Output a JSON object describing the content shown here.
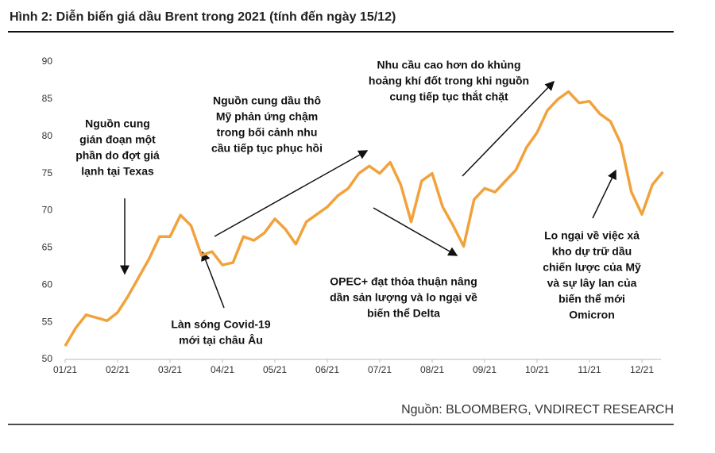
{
  "chart_data": {
    "type": "line",
    "title": "Hình 2: Diễn biến giá dầu Brent trong 2021 (tính đến ngày 15/12)",
    "source": "Nguồn: BLOOMBERG, VNDIRECT RESEARCH",
    "categories": [
      "01/21",
      null,
      null,
      null,
      null,
      "02/21",
      null,
      null,
      null,
      null,
      "03/21",
      null,
      null,
      null,
      null,
      "04/21",
      null,
      null,
      null,
      null,
      "05/21",
      null,
      null,
      null,
      null,
      "06/21",
      null,
      null,
      null,
      null,
      "07/21",
      null,
      null,
      null,
      null,
      "08/21",
      null,
      null,
      null,
      null,
      "09/21",
      null,
      null,
      null,
      null,
      "10/21",
      null,
      null,
      null,
      null,
      "11/21",
      null,
      null,
      null,
      null,
      "12/21",
      null,
      null
    ],
    "series": [
      {
        "color": "#f2a23c",
        "values": [
          51.8,
          54.2,
          56.0,
          55.6,
          55.2,
          56.3,
          58.5,
          61.0,
          63.5,
          66.5,
          66.5,
          69.4,
          68.0,
          64.0,
          64.5,
          62.7,
          63.0,
          66.5,
          66.0,
          67.0,
          68.9,
          67.5,
          65.5,
          68.5,
          69.5,
          70.5,
          72.0,
          73.0,
          75.0,
          76.0,
          75.0,
          76.5,
          73.5,
          68.5,
          74.0,
          75.0,
          70.5,
          68.0,
          65.2,
          71.5,
          73.0,
          72.5,
          74.0,
          75.5,
          78.5,
          80.5,
          83.5,
          85.0,
          86.0,
          84.5,
          84.7,
          83.0,
          82.0,
          79.0,
          72.5,
          69.5,
          73.5,
          75.2
        ]
      }
    ],
    "ylim": [
      50,
      90
    ],
    "yticks": [
      50,
      55,
      60,
      65,
      70,
      75,
      80,
      85,
      90
    ],
    "annotations": [
      [
        "Nguồn cung",
        "gián đoạn một",
        "phần do đợt giá",
        "lạnh tại Texas"
      ],
      [
        "Nguồn cung dầu thô",
        "Mỹ phản ứng chậm",
        "trong bối cảnh nhu",
        "cầu tiếp tục phục hồi"
      ],
      [
        "Nhu cầu cao hơn do khủng",
        "hoảng khí đốt trong khi nguồn",
        "cung tiếp tục thắt chặt"
      ],
      [
        "OPEC+ đạt thỏa thuận nâng",
        "dần sản lượng và lo ngại về",
        "biến thể Delta"
      ],
      [
        "Làn sóng Covid-19",
        "mới tại châu Âu"
      ],
      [
        "Lo ngại về việc xả",
        "kho dự trữ dầu",
        "chiến lược của Mỹ",
        "và sự lây lan của",
        "biến thể mới",
        "Omicron"
      ]
    ]
  }
}
